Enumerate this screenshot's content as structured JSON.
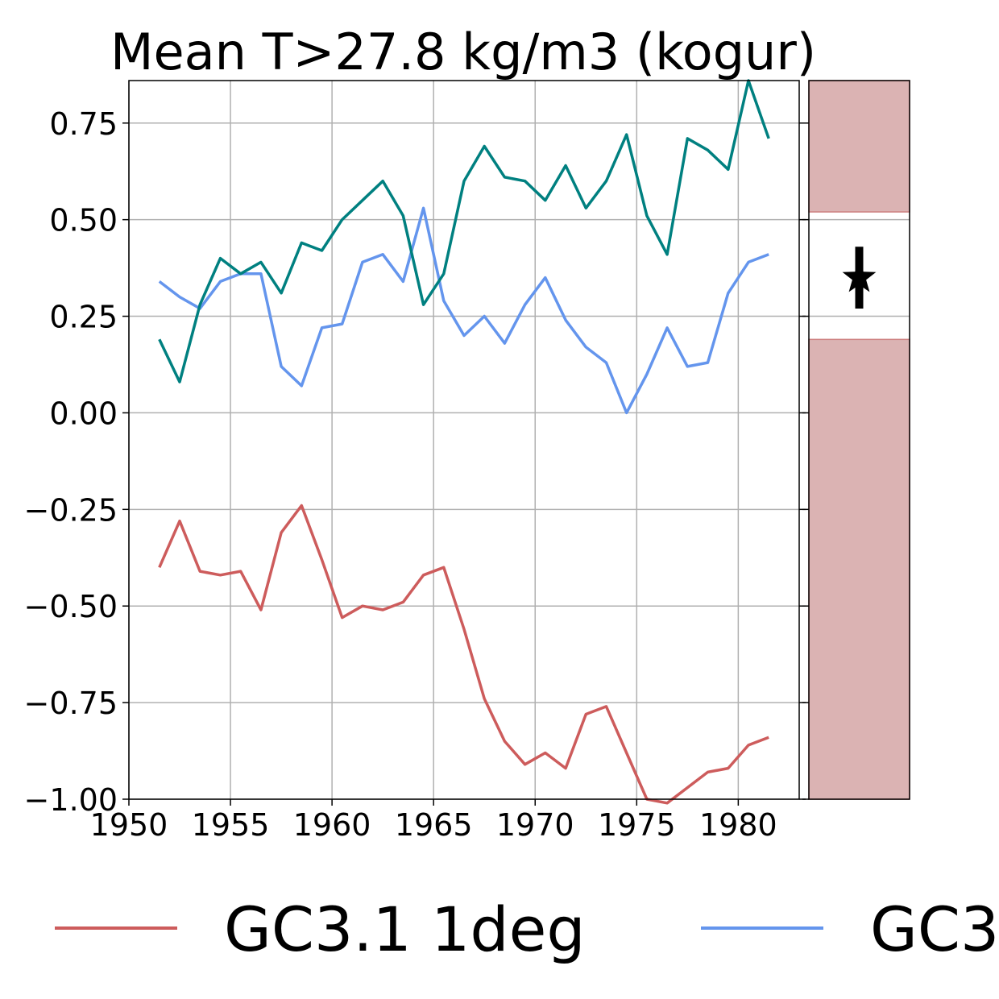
{
  "chart_data": {
    "type": "line",
    "title": "Mean T>27.8 kg/m3 (kogur)",
    "xlabel": "",
    "ylabel": "",
    "xlim": [
      1950,
      1983
    ],
    "ylim": [
      -1.0,
      0.86
    ],
    "xticks": [
      1950,
      1955,
      1960,
      1965,
      1970,
      1975,
      1980
    ],
    "yticks": [
      -1.0,
      -0.75,
      -0.5,
      -0.25,
      0.0,
      0.25,
      0.5,
      0.75
    ],
    "xtick_labels": [
      "1950",
      "1955",
      "1960",
      "1965",
      "1970",
      "1975",
      "1980"
    ],
    "ytick_labels": [
      "−1.00",
      "−0.75",
      "−0.50",
      "−0.25",
      "0.00",
      "0.25",
      "0.50",
      "0.75"
    ],
    "grid": true,
    "legend_position": "bottom",
    "x": [
      1951.5,
      1952.5,
      1953.5,
      1954.5,
      1955.5,
      1956.5,
      1957.5,
      1958.5,
      1959.5,
      1960.5,
      1961.5,
      1962.5,
      1963.5,
      1964.5,
      1965.5,
      1966.5,
      1967.5,
      1968.5,
      1969.5,
      1970.5,
      1971.5,
      1972.5,
      1973.5,
      1974.5,
      1975.5,
      1976.5,
      1977.5,
      1978.5,
      1979.5,
      1980.5,
      1981.5
    ],
    "series": [
      {
        "name": "GC3.1 1deg",
        "color": "#cd5c5c",
        "values": [
          -0.4,
          -0.28,
          -0.41,
          -0.42,
          -0.41,
          -0.51,
          -0.31,
          -0.24,
          -0.38,
          -0.53,
          -0.5,
          -0.51,
          -0.49,
          -0.42,
          -0.4,
          -0.56,
          -0.74,
          -0.85,
          -0.91,
          -0.88,
          -0.92,
          -0.78,
          -0.76,
          -0.88,
          -1.0,
          -1.01,
          -0.97,
          -0.93,
          -0.92,
          -0.86,
          -0.84
        ]
      },
      {
        "name": "GC3",
        "color": "#6495ed",
        "values": [
          0.34,
          0.3,
          0.27,
          0.34,
          0.36,
          0.36,
          0.12,
          0.07,
          0.22,
          0.23,
          0.39,
          0.41,
          0.34,
          0.53,
          0.29,
          0.2,
          0.25,
          0.18,
          0.28,
          0.35,
          0.24,
          0.17,
          0.13,
          0.0,
          0.1,
          0.22,
          0.12,
          0.13,
          0.31,
          0.39,
          0.41
        ]
      },
      {
        "color": "#008080",
        "values": [
          0.19,
          0.08,
          0.28,
          0.4,
          0.36,
          0.39,
          0.31,
          0.44,
          0.42,
          0.5,
          0.55,
          0.6,
          0.51,
          0.28,
          0.36,
          0.6,
          0.69,
          0.61,
          0.6,
          0.55,
          0.64,
          0.53,
          0.6,
          0.72,
          0.51,
          0.41,
          0.71,
          0.68,
          0.63,
          0.86,
          0.71
        ]
      }
    ],
    "side_panel": {
      "band_color": "#dbb3b3",
      "band_edge_color": "#cd7f7f",
      "white_band_range": [
        0.19,
        0.52
      ],
      "star_value": 0.35,
      "errorbar_range": [
        0.27,
        0.43
      ],
      "marker_color": "#000000"
    }
  }
}
